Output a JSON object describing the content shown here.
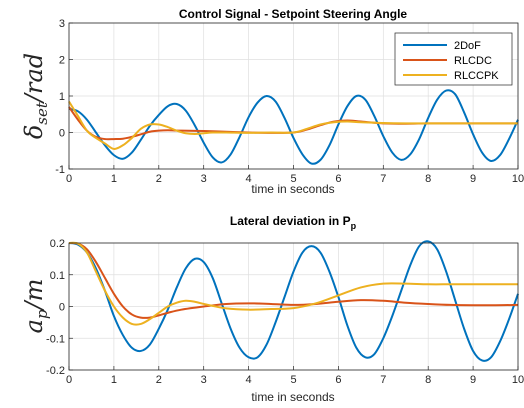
{
  "chart_data": [
    {
      "type": "line",
      "title": "Control Signal - Setpoint Steering Angle",
      "xlabel": "time in seconds",
      "ylabel": "δ_set / rad",
      "ylabel_main": "δ",
      "ylabel_sub": "set",
      "ylabel_rest": "/rad",
      "xlim": [
        0,
        10
      ],
      "ylim": [
        -1,
        3
      ],
      "xticks": [
        "0",
        "1",
        "2",
        "3",
        "4",
        "5",
        "6",
        "7",
        "8",
        "9",
        "10"
      ],
      "yticks": [
        "-1",
        "0",
        "1",
        "2",
        "3"
      ],
      "grid": true,
      "legend_position": "top-right",
      "series": [
        {
          "name": "2DoF",
          "color": "#0072BD",
          "x": [
            0,
            0.2,
            0.4,
            0.6,
            0.8,
            1.0,
            1.2,
            1.4,
            1.6,
            1.8,
            2.0,
            2.2,
            2.4,
            2.6,
            2.8,
            3.0,
            3.2,
            3.4,
            3.6,
            3.8,
            4.0,
            4.2,
            4.4,
            4.6,
            4.8,
            5.0,
            5.2,
            5.4,
            5.6,
            5.8,
            6.0,
            6.2,
            6.4,
            6.6,
            6.8,
            7.0,
            7.2,
            7.4,
            7.6,
            7.8,
            8.0,
            8.2,
            8.4,
            8.6,
            8.8,
            9.0,
            9.2,
            9.4,
            9.6,
            9.8,
            10.0
          ],
          "y": [
            0.65,
            0.58,
            0.35,
            0.0,
            -0.35,
            -0.62,
            -0.72,
            -0.55,
            -0.2,
            0.18,
            0.48,
            0.72,
            0.78,
            0.6,
            0.2,
            -0.28,
            -0.68,
            -0.82,
            -0.6,
            -0.12,
            0.42,
            0.82,
            1.0,
            0.85,
            0.4,
            -0.15,
            -0.6,
            -0.85,
            -0.75,
            -0.35,
            0.22,
            0.72,
            1.0,
            0.9,
            0.45,
            -0.1,
            -0.55,
            -0.75,
            -0.6,
            -0.18,
            0.4,
            0.9,
            1.15,
            1.05,
            0.55,
            -0.05,
            -0.55,
            -0.78,
            -0.62,
            -0.18,
            0.35
          ]
        },
        {
          "name": "RLCDC",
          "color": "#D95319",
          "x": [
            0,
            0.2,
            0.4,
            0.6,
            0.8,
            1.0,
            1.2,
            1.4,
            1.6,
            1.8,
            2.0,
            2.2,
            2.5,
            3.0,
            3.5,
            4.0,
            4.5,
            5.0,
            5.3,
            5.6,
            5.9,
            6.2,
            6.5,
            7.0,
            7.5,
            8.0,
            8.5,
            9.0,
            9.5,
            10.0
          ],
          "y": [
            0.7,
            0.35,
            0.05,
            -0.12,
            -0.18,
            -0.18,
            -0.17,
            -0.12,
            -0.05,
            0.02,
            0.05,
            0.06,
            0.05,
            0.04,
            0.02,
            0.0,
            -0.01,
            0.0,
            0.08,
            0.2,
            0.3,
            0.33,
            0.3,
            0.25,
            0.24,
            0.25,
            0.25,
            0.25,
            0.25,
            0.25
          ]
        },
        {
          "name": "RLCCPK",
          "color": "#EDB120",
          "x": [
            0,
            0.2,
            0.4,
            0.6,
            0.8,
            1.0,
            1.2,
            1.4,
            1.6,
            1.8,
            2.0,
            2.2,
            2.4,
            2.6,
            2.8,
            3.0,
            3.2,
            3.5,
            4.0,
            4.5,
            5.0,
            5.3,
            5.6,
            5.9,
            6.2,
            6.5,
            7.0,
            7.5,
            8.0,
            8.5,
            9.0,
            9.5,
            10.0
          ],
          "y": [
            0.85,
            0.45,
            0.05,
            -0.15,
            -0.3,
            -0.45,
            -0.35,
            -0.15,
            0.1,
            0.22,
            0.22,
            0.15,
            0.05,
            -0.02,
            -0.04,
            -0.02,
            0.0,
            0.0,
            -0.01,
            0.0,
            0.0,
            0.1,
            0.22,
            0.28,
            0.3,
            0.28,
            0.26,
            0.25,
            0.25,
            0.25,
            0.25,
            0.25,
            0.25
          ]
        }
      ]
    },
    {
      "type": "line",
      "title": "Lateral deviation in P_p",
      "title_main": "Lateral deviation in P",
      "title_sub": "p",
      "xlabel": "time in seconds",
      "ylabel": "a_p / m",
      "ylabel_main": "a",
      "ylabel_sub": "p",
      "ylabel_rest": "/m",
      "xlim": [
        0,
        10
      ],
      "ylim": [
        -0.2,
        0.2
      ],
      "xticks": [
        "0",
        "1",
        "2",
        "3",
        "4",
        "5",
        "6",
        "7",
        "8",
        "9",
        "10"
      ],
      "yticks": [
        "-0.2",
        "-0.1",
        "0",
        "0.1",
        "0.2"
      ],
      "grid": true,
      "series": [
        {
          "name": "2DoF",
          "color": "#0072BD",
          "x": [
            0,
            0.2,
            0.4,
            0.6,
            0.8,
            1.0,
            1.2,
            1.4,
            1.6,
            1.8,
            2.0,
            2.2,
            2.4,
            2.6,
            2.8,
            3.0,
            3.2,
            3.4,
            3.6,
            3.8,
            4.0,
            4.2,
            4.4,
            4.6,
            4.8,
            5.0,
            5.2,
            5.4,
            5.6,
            5.8,
            6.0,
            6.2,
            6.4,
            6.6,
            6.8,
            7.0,
            7.2,
            7.4,
            7.6,
            7.8,
            8.0,
            8.2,
            8.4,
            8.6,
            8.8,
            9.0,
            9.2,
            9.4,
            9.6,
            9.8,
            10.0
          ],
          "y": [
            0.2,
            0.195,
            0.17,
            0.12,
            0.05,
            -0.03,
            -0.09,
            -0.13,
            -0.14,
            -0.12,
            -0.07,
            -0.01,
            0.06,
            0.12,
            0.15,
            0.14,
            0.09,
            0.01,
            -0.07,
            -0.13,
            -0.16,
            -0.16,
            -0.12,
            -0.05,
            0.03,
            0.11,
            0.17,
            0.19,
            0.17,
            0.11,
            0.03,
            -0.06,
            -0.13,
            -0.16,
            -0.15,
            -0.1,
            -0.03,
            0.05,
            0.13,
            0.19,
            0.205,
            0.18,
            0.11,
            0.02,
            -0.07,
            -0.14,
            -0.17,
            -0.16,
            -0.11,
            -0.04,
            0.04
          ]
        },
        {
          "name": "RLCDC",
          "color": "#D95319",
          "x": [
            0,
            0.2,
            0.4,
            0.6,
            0.8,
            1.0,
            1.2,
            1.4,
            1.6,
            1.8,
            2.0,
            2.2,
            2.5,
            3.0,
            3.5,
            4.0,
            4.5,
            5.0,
            5.5,
            6.0,
            6.5,
            7.0,
            7.5,
            8.0,
            8.5,
            9.0,
            9.5,
            10.0
          ],
          "y": [
            0.2,
            0.198,
            0.18,
            0.14,
            0.09,
            0.04,
            0.0,
            -0.025,
            -0.035,
            -0.035,
            -0.028,
            -0.02,
            -0.01,
            0.0,
            0.008,
            0.01,
            0.008,
            0.005,
            0.008,
            0.015,
            0.02,
            0.018,
            0.012,
            0.008,
            0.005,
            0.004,
            0.004,
            0.005
          ]
        },
        {
          "name": "RLCCPK",
          "color": "#EDB120",
          "x": [
            0,
            0.2,
            0.4,
            0.6,
            0.8,
            1.0,
            1.2,
            1.4,
            1.6,
            1.8,
            2.0,
            2.2,
            2.4,
            2.6,
            2.8,
            3.0,
            3.2,
            3.5,
            4.0,
            4.5,
            5.0,
            5.5,
            6.0,
            6.5,
            7.0,
            7.5,
            8.0,
            8.5,
            9.0,
            9.5,
            10.0
          ],
          "y": [
            0.2,
            0.198,
            0.17,
            0.11,
            0.05,
            0.0,
            -0.035,
            -0.055,
            -0.055,
            -0.04,
            -0.02,
            0.0,
            0.012,
            0.018,
            0.015,
            0.008,
            0.002,
            -0.006,
            -0.01,
            -0.008,
            -0.005,
            0.01,
            0.035,
            0.06,
            0.072,
            0.072,
            0.07,
            0.07,
            0.07,
            0.07,
            0.07
          ]
        }
      ]
    }
  ]
}
